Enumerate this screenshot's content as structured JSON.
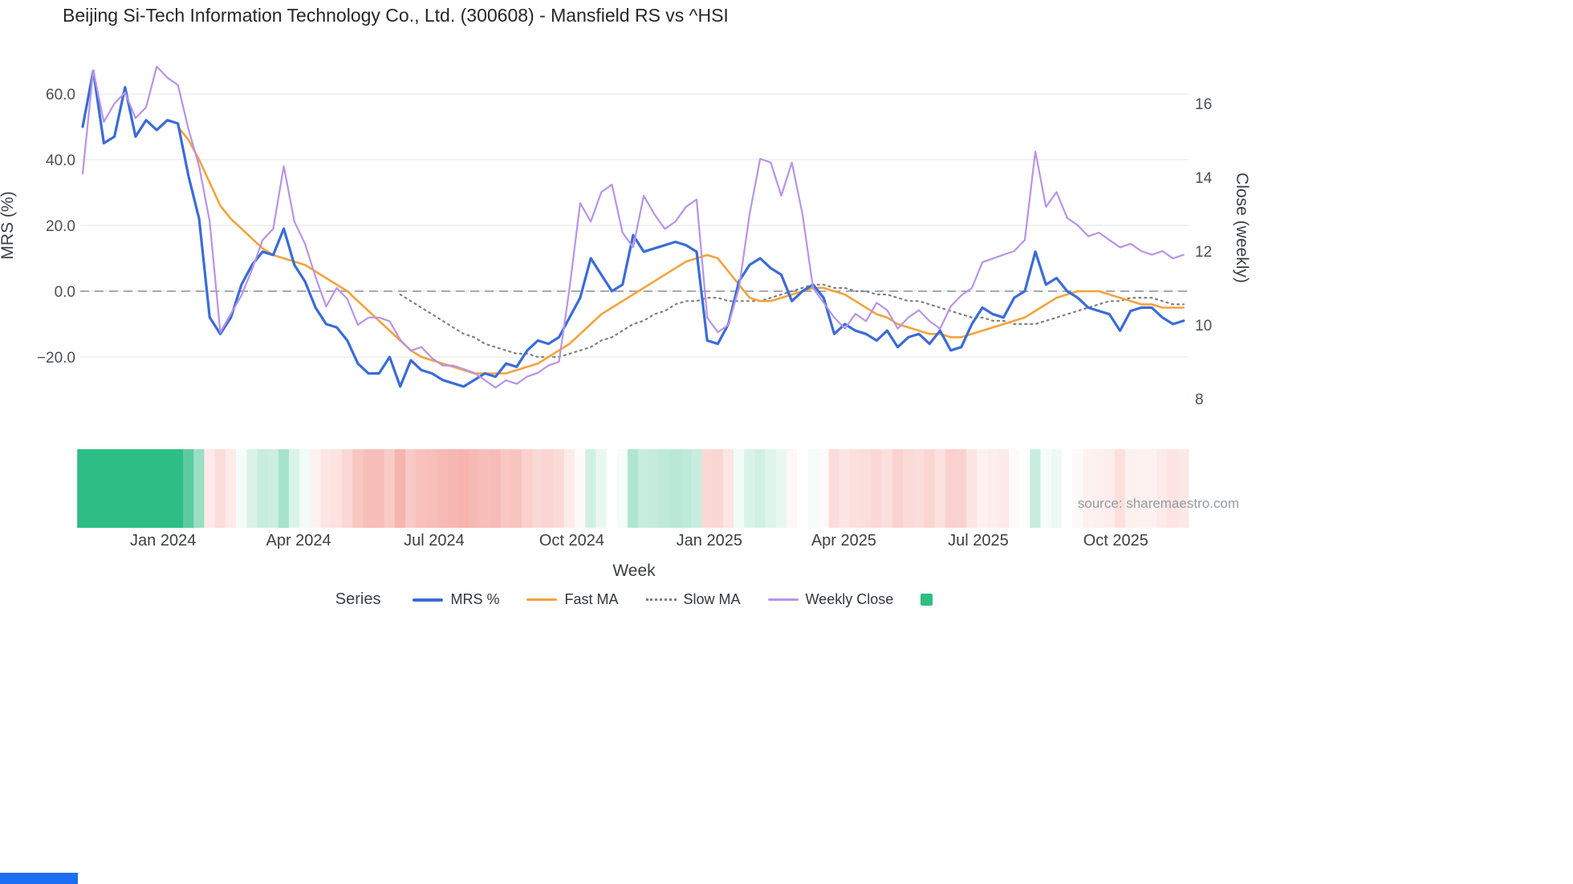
{
  "title": "Beijing Si-Tech Information Technology Co., Ltd. (300608) - Mansfield RS vs ^HSI",
  "source_note": "source: sharemaestro.com",
  "axes": {
    "left_label": "MRS (%)",
    "right_label": "Close (weekly)",
    "x_label": "Week",
    "left_ticks": [
      {
        "value": 60,
        "label": "60.0"
      },
      {
        "value": 40,
        "label": "40.0"
      },
      {
        "value": 20,
        "label": "20.0"
      },
      {
        "value": 0,
        "label": "0.0"
      },
      {
        "value": -20,
        "label": "−20.0"
      }
    ],
    "right_ticks": [
      {
        "value": 16,
        "label": "16"
      },
      {
        "value": 14,
        "label": "14"
      },
      {
        "value": 12,
        "label": "12"
      },
      {
        "value": 10,
        "label": "10"
      },
      {
        "value": 8,
        "label": "8"
      }
    ],
    "x_ticks": [
      {
        "week": 7.6,
        "label": "Jan 2024"
      },
      {
        "week": 20.4,
        "label": "Apr 2024"
      },
      {
        "week": 33.2,
        "label": "Jul 2024"
      },
      {
        "week": 46.2,
        "label": "Oct 2024"
      },
      {
        "week": 59.2,
        "label": "Jan 2025"
      },
      {
        "week": 71.9,
        "label": "Apr 2025"
      },
      {
        "week": 84.6,
        "label": "Jul 2025"
      },
      {
        "week": 97.6,
        "label": "Oct 2025"
      }
    ]
  },
  "legend": {
    "title": "Series",
    "entries": [
      {
        "name": "MRS %",
        "swatch": "line",
        "color": "#3a6bd8"
      },
      {
        "name": "Fast MA",
        "swatch": "line",
        "color": "#f2a33c"
      },
      {
        "name": "Slow MA",
        "swatch": "dotted-line",
        "color": "#7f7f7f"
      },
      {
        "name": "Weekly Close",
        "swatch": "line",
        "color": "#b894e6"
      },
      {
        "name": "",
        "swatch": "square",
        "color": "#2ebd85"
      }
    ]
  },
  "chart_data": {
    "type": "line",
    "x_unit": "week",
    "n_weeks": 105,
    "left_axis": {
      "label": "MRS (%)",
      "range": [
        -35,
        70
      ]
    },
    "right_axis": {
      "label": "Close (weekly)",
      "range": [
        7.5,
        17.5
      ]
    },
    "zero_line": 0,
    "grid": true,
    "legend_position": "bottom",
    "series": [
      {
        "name": "MRS %",
        "axis": "left",
        "color": "#3a6bd8",
        "line_style": "solid",
        "width": 3.2,
        "values": [
          50,
          67,
          45,
          47,
          62,
          47,
          52,
          49,
          52,
          51,
          35,
          22,
          -8,
          -13,
          -8,
          2,
          8,
          12,
          11,
          19,
          8,
          3,
          -5,
          -10,
          -11,
          -15,
          -22,
          -25,
          -25,
          -20,
          -29,
          -21,
          -24,
          -25,
          -27,
          -28,
          -29,
          -27,
          -25,
          -26,
          -22,
          -23,
          -18,
          -15,
          -16,
          -14,
          -8,
          -2,
          10,
          5,
          0,
          2,
          17,
          12,
          13,
          14,
          15,
          14,
          12,
          -15,
          -16,
          -10,
          3,
          8,
          10,
          7,
          5,
          -3,
          0,
          2,
          -2,
          -13,
          -10,
          -12,
          -13,
          -15,
          -12,
          -17,
          -14,
          -13,
          -16,
          -12,
          -18,
          -17,
          -10,
          -5,
          -7,
          -8,
          -2,
          0,
          12,
          2,
          4,
          0,
          -2,
          -5,
          -6,
          -7,
          -12,
          -6,
          -5,
          -5,
          -8,
          -10,
          -9
        ]
      },
      {
        "name": "Fast MA",
        "axis": "left",
        "color": "#f2a33c",
        "line_style": "solid",
        "width": 2.6,
        "values": [
          null,
          null,
          null,
          null,
          null,
          null,
          null,
          null,
          null,
          50,
          46,
          40,
          33,
          26,
          22,
          19,
          16,
          13,
          11,
          10,
          9,
          8,
          6,
          4,
          2,
          0,
          -3,
          -6,
          -9,
          -12,
          -15,
          -18,
          -20,
          -21,
          -22,
          -23,
          -24,
          -25,
          -25,
          -25,
          -25,
          -24,
          -23,
          -22,
          -20,
          -18,
          -16,
          -13,
          -10,
          -7,
          -5,
          -3,
          -1,
          1,
          3,
          5,
          7,
          9,
          10,
          11,
          10,
          6,
          2,
          -2,
          -3,
          -3,
          -2,
          -1,
          0,
          1,
          1,
          0,
          -1,
          -3,
          -5,
          -7,
          -8,
          -10,
          -11,
          -12,
          -13,
          -13,
          -14,
          -14,
          -13,
          -12,
          -11,
          -10,
          -9,
          -8,
          -6,
          -4,
          -2,
          -1,
          0,
          0,
          0,
          -1,
          -2,
          -3,
          -4,
          -4,
          -5,
          -5,
          -5
        ]
      },
      {
        "name": "Slow MA",
        "axis": "left",
        "color": "#7f7f7f",
        "line_style": "dotted",
        "width": 2.2,
        "values": [
          null,
          null,
          null,
          null,
          null,
          null,
          null,
          null,
          null,
          null,
          null,
          null,
          null,
          null,
          null,
          null,
          null,
          null,
          null,
          null,
          null,
          null,
          null,
          null,
          null,
          null,
          null,
          null,
          null,
          null,
          -1,
          -3,
          -5,
          -7,
          -9,
          -11,
          -13,
          -14,
          -16,
          -17,
          -18,
          -19,
          -19,
          -20,
          -20,
          -20,
          -19,
          -18,
          -17,
          -15,
          -14,
          -12,
          -10,
          -9,
          -7,
          -6,
          -4,
          -3,
          -3,
          -2,
          -2,
          -3,
          -3,
          -3,
          -3,
          -2,
          -1,
          0,
          1,
          2,
          2,
          1,
          1,
          0,
          0,
          -1,
          -1,
          -2,
          -3,
          -3,
          -4,
          -5,
          -6,
          -7,
          -8,
          -8,
          -9,
          -9,
          -10,
          -10,
          -10,
          -9,
          -8,
          -7,
          -6,
          -5,
          -4,
          -3,
          -3,
          -2,
          -2,
          -2,
          -3,
          -4,
          -4
        ]
      },
      {
        "name": "Weekly Close",
        "axis": "right",
        "color": "#b894e6",
        "line_style": "solid",
        "width": 2.2,
        "values": [
          14.1,
          16.9,
          15.5,
          16.0,
          16.3,
          15.6,
          15.9,
          17.0,
          16.7,
          16.5,
          15.3,
          14.3,
          12.8,
          9.8,
          10.3,
          10.8,
          11.5,
          12.3,
          12.6,
          14.3,
          12.8,
          12.2,
          11.3,
          10.5,
          11.0,
          10.7,
          10.0,
          10.2,
          10.2,
          10.1,
          9.6,
          9.3,
          9.4,
          9.1,
          8.9,
          8.9,
          8.8,
          8.7,
          8.5,
          8.3,
          8.5,
          8.4,
          8.6,
          8.7,
          8.9,
          9.0,
          11.0,
          13.3,
          12.8,
          13.6,
          13.8,
          12.5,
          12.1,
          13.5,
          13.0,
          12.6,
          12.8,
          13.2,
          13.4,
          10.2,
          9.8,
          10.0,
          11.0,
          13.0,
          14.5,
          14.4,
          13.5,
          14.4,
          13.0,
          11.0,
          10.6,
          10.2,
          9.9,
          10.3,
          10.1,
          10.6,
          10.4,
          9.9,
          10.2,
          10.4,
          10.1,
          9.9,
          10.5,
          10.8,
          11.0,
          11.7,
          11.8,
          11.9,
          12.0,
          12.3,
          14.7,
          13.2,
          13.6,
          12.9,
          12.7,
          12.4,
          12.5,
          12.3,
          12.1,
          12.2,
          12.0,
          11.9,
          12.0,
          11.8,
          11.9
        ]
      }
    ],
    "heatmap_strip": {
      "derived_from": "MRS %",
      "positive_color": "#2ebd85",
      "negative_color": "#f28b82",
      "max_abs": 45
    }
  }
}
